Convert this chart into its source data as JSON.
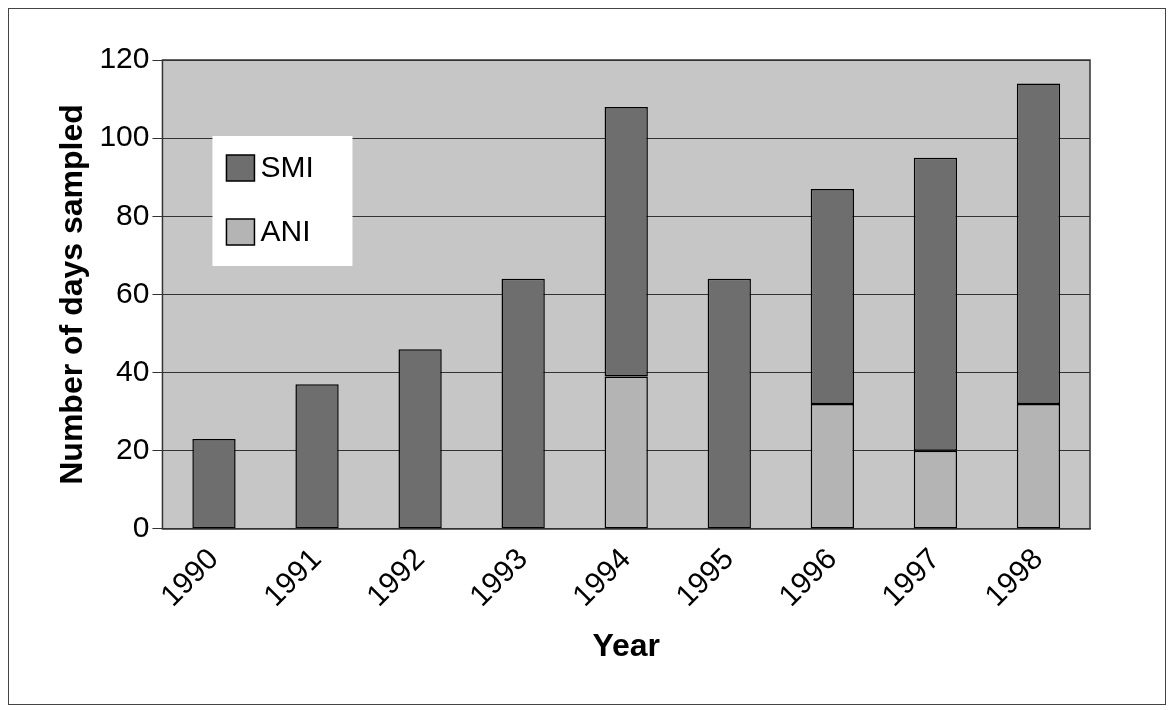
{
  "chart_data": {
    "type": "bar",
    "stacked": true,
    "xlabel": "Year",
    "ylabel": "Number of days sampled",
    "categories": [
      "1990",
      "1991",
      "1992",
      "1993",
      "1994",
      "1995",
      "1996",
      "1997",
      "1998"
    ],
    "series": [
      {
        "name": "ANI",
        "color": "#b4b4b4",
        "values": [
          0,
          0,
          0,
          0,
          39,
          0,
          32,
          20,
          32
        ]
      },
      {
        "name": "SMI",
        "color": "#6e6e6e",
        "values": [
          23,
          37,
          46,
          64,
          69,
          64,
          55,
          75,
          82
        ]
      }
    ],
    "ylim": [
      0,
      120
    ],
    "yticks": [
      0,
      20,
      40,
      60,
      80,
      100,
      120
    ],
    "grid": "y",
    "legend": "top left"
  }
}
